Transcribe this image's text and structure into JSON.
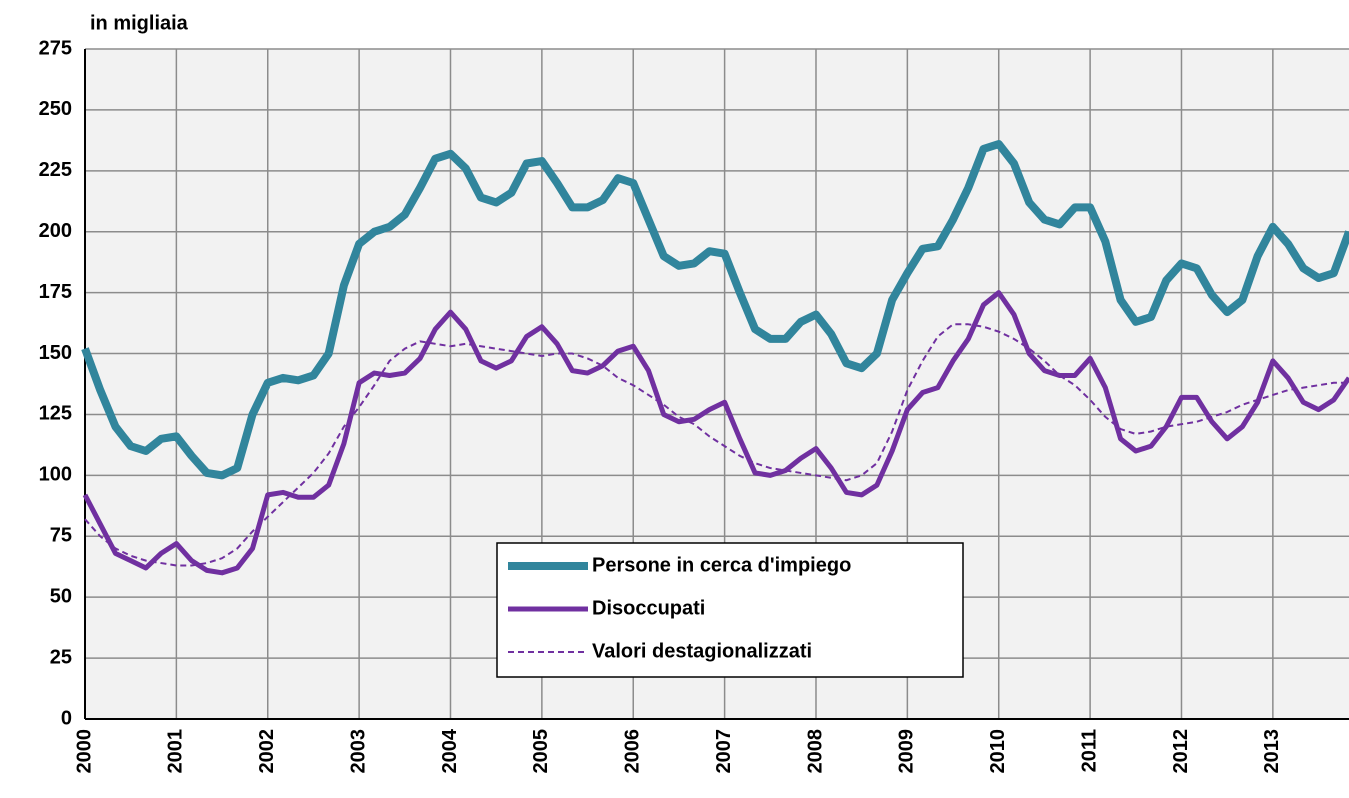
{
  "chart_data": {
    "type": "line",
    "y_label": "in migliaia",
    "categories": [
      "2000",
      null,
      null,
      null,
      null,
      null,
      "2001",
      null,
      null,
      null,
      null,
      null,
      "2002",
      null,
      null,
      null,
      null,
      null,
      "2003",
      null,
      null,
      null,
      null,
      null,
      "2004",
      null,
      null,
      null,
      null,
      null,
      "2005",
      null,
      null,
      null,
      null,
      null,
      "2006",
      null,
      null,
      null,
      null,
      null,
      "2007",
      null,
      null,
      null,
      null,
      null,
      "2008",
      null,
      null,
      null,
      null,
      null,
      "2009",
      null,
      null,
      null,
      null,
      null,
      "2010",
      null,
      null,
      null,
      null,
      null,
      "2011",
      null,
      null,
      null,
      null,
      null,
      "2012",
      null,
      null,
      null,
      null,
      null,
      "2013",
      null,
      null,
      null,
      null,
      null
    ],
    "series": [
      {
        "name": "Persone in cerca d'impiego",
        "color": "#31859c",
        "width": 8,
        "dashed": false,
        "values": [
          152,
          135,
          120,
          112,
          110,
          115,
          116,
          108,
          101,
          100,
          103,
          125,
          138,
          140,
          139,
          141,
          150,
          178,
          195,
          200,
          202,
          207,
          218,
          230,
          232,
          226,
          214,
          212,
          216,
          228,
          229,
          220,
          210,
          210,
          213,
          222,
          220,
          205,
          190,
          186,
          187,
          192,
          191,
          175,
          160,
          156,
          156,
          163,
          166,
          158,
          146,
          144,
          150,
          172,
          183,
          193,
          194,
          205,
          218,
          234,
          236,
          228,
          212,
          205,
          203,
          210,
          210,
          196,
          172,
          163,
          165,
          180,
          187,
          185,
          174,
          167,
          172,
          190,
          202,
          195,
          185,
          181,
          183,
          200
        ]
      },
      {
        "name": "Disoccupati",
        "color": "#7030a0",
        "width": 5,
        "dashed": false,
        "values": [
          92,
          80,
          68,
          65,
          62,
          68,
          72,
          65,
          61,
          60,
          62,
          70,
          92,
          93,
          91,
          91,
          96,
          113,
          138,
          142,
          141,
          142,
          148,
          160,
          167,
          160,
          147,
          144,
          147,
          157,
          161,
          154,
          143,
          142,
          145,
          151,
          153,
          143,
          125,
          122,
          123,
          127,
          130,
          115,
          101,
          100,
          102,
          107,
          111,
          103,
          93,
          92,
          96,
          110,
          127,
          134,
          136,
          147,
          156,
          170,
          175,
          166,
          150,
          143,
          141,
          141,
          148,
          136,
          115,
          110,
          112,
          120,
          132,
          132,
          122,
          115,
          120,
          130,
          147,
          140,
          130,
          127,
          131,
          140
        ]
      },
      {
        "name": "Valori destagionalizzati",
        "color": "#7030a0",
        "width": 2,
        "dashed": true,
        "values": [
          82,
          75,
          70,
          67,
          65,
          64,
          63,
          63,
          64,
          66,
          70,
          77,
          83,
          89,
          95,
          101,
          109,
          120,
          128,
          137,
          147,
          152,
          155,
          154,
          153,
          154,
          153,
          152,
          151,
          150,
          149,
          150,
          150,
          148,
          145,
          140,
          137,
          133,
          129,
          124,
          121,
          116,
          112,
          108,
          105,
          103,
          102,
          101,
          100,
          99,
          98,
          100,
          105,
          118,
          135,
          147,
          157,
          162,
          162,
          161,
          159,
          156,
          152,
          147,
          141,
          137,
          131,
          124,
          119,
          117,
          118,
          120,
          121,
          122,
          124,
          126,
          129,
          131,
          133,
          135,
          136,
          137,
          138,
          138
        ]
      }
    ],
    "ylim": [
      0,
      275
    ],
    "yticks": [
      0,
      25,
      50,
      75,
      100,
      125,
      150,
      175,
      200,
      225,
      250,
      275
    ],
    "grid": true
  }
}
